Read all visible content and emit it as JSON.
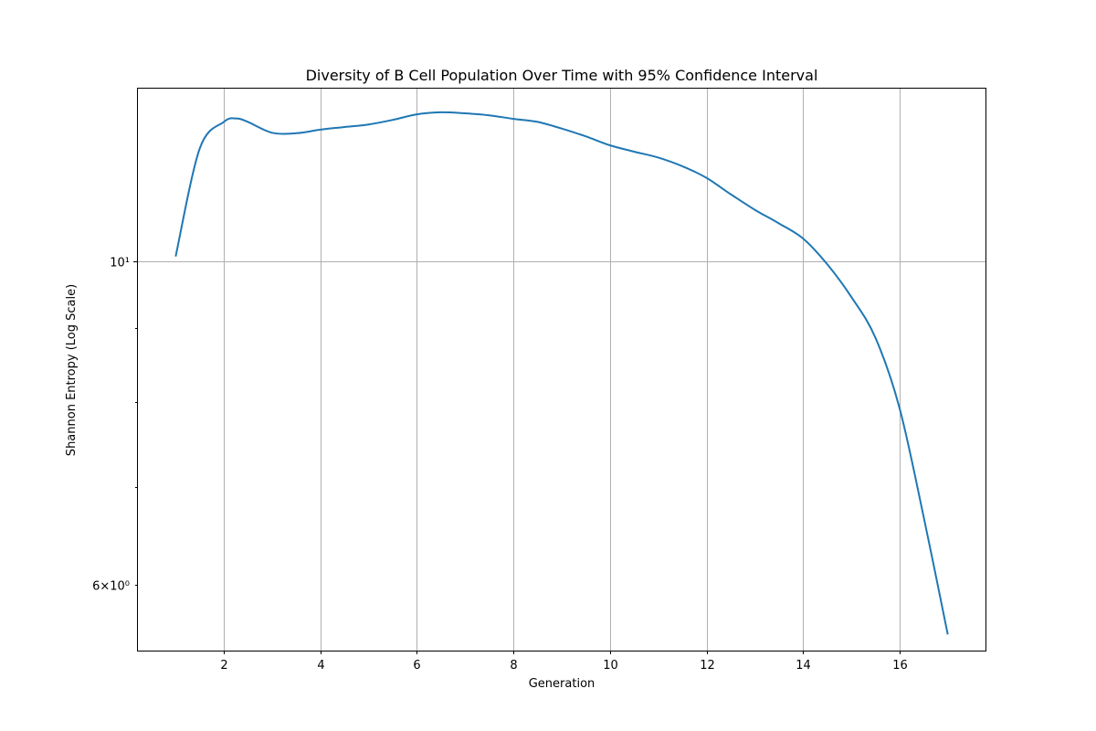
{
  "chart_data": {
    "type": "line",
    "title": "Diversity of B Cell Population Over Time with 95% Confidence Interval",
    "xlabel": "Generation",
    "ylabel": "Shannon Entropy (Log Scale)",
    "x_scale": "linear",
    "y_scale": "log",
    "xlim": [
      0.2,
      17.8
    ],
    "ylim": [
      5.41,
      13.14
    ],
    "xticks": [
      2,
      4,
      6,
      8,
      10,
      12,
      14,
      16
    ],
    "xtick_labels": [
      "2",
      "4",
      "6",
      "8",
      "10",
      "12",
      "14",
      "16"
    ],
    "yticks_major": [
      10
    ],
    "ytick_major_labels": [
      "10¹"
    ],
    "yticks_minor": [
      6,
      7,
      8,
      9
    ],
    "ytick_minor_labels": [
      "6×10⁰",
      "",
      "",
      ""
    ],
    "grid": true,
    "legend": "none",
    "series": [
      {
        "color": "#1f77b4",
        "x": [
          1,
          1.5,
          2,
          2.25,
          2.5,
          3,
          3.5,
          4,
          4.5,
          5,
          5.5,
          6,
          6.5,
          7,
          7.5,
          8,
          8.5,
          9,
          9.5,
          10,
          10.5,
          11,
          11.5,
          12,
          12.5,
          13,
          13.5,
          14,
          14.5,
          15,
          15.5,
          16,
          16.5,
          17
        ],
        "y": [
          10.07,
          11.94,
          12.45,
          12.52,
          12.45,
          12.24,
          12.23,
          12.3,
          12.35,
          12.4,
          12.49,
          12.6,
          12.64,
          12.62,
          12.58,
          12.51,
          12.45,
          12.32,
          12.17,
          12.0,
          11.88,
          11.77,
          11.61,
          11.4,
          11.11,
          10.84,
          10.61,
          10.36,
          9.95,
          9.45,
          8.86,
          7.93,
          6.68,
          5.55
        ]
      }
    ]
  }
}
